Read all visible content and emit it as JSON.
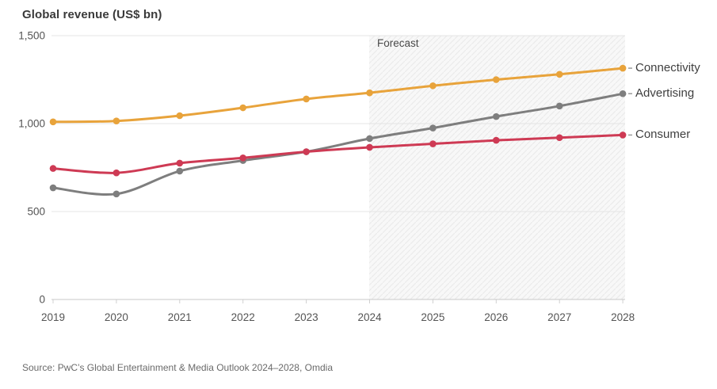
{
  "header": {
    "title": "Global revenue (US$ bn)"
  },
  "source": {
    "text": "Source: PwC’s Global Entertainment & Media Outlook 2024–2028, Omdia"
  },
  "chart_data": {
    "type": "line",
    "title": "Global revenue (US$ bn)",
    "x": [
      2019,
      2020,
      2021,
      2022,
      2023,
      2024,
      2025,
      2026,
      2027,
      2028
    ],
    "x_labels": [
      "2019",
      "2020",
      "2021",
      "2022",
      "2023",
      "2024",
      "2025",
      "2026",
      "2027",
      "2028"
    ],
    "series": [
      {
        "name": "Connectivity",
        "color": "#E8A33B",
        "values": [
          1010,
          1015,
          1045,
          1090,
          1140,
          1175,
          1215,
          1250,
          1280,
          1315
        ]
      },
      {
        "name": "Advertising",
        "color": "#7E7E7E",
        "values": [
          635,
          600,
          730,
          790,
          840,
          915,
          975,
          1040,
          1100,
          1170
        ]
      },
      {
        "name": "Consumer",
        "color": "#CE3A54",
        "values": [
          745,
          720,
          775,
          805,
          840,
          865,
          885,
          905,
          920,
          935
        ]
      }
    ],
    "ylim": [
      0,
      1500
    ],
    "yticks": [
      0,
      500,
      1000,
      1500
    ],
    "ytick_labels": [
      "0",
      "500",
      "1,000",
      "1,500"
    ],
    "forecast": {
      "label": "Forecast",
      "start_x": 2024,
      "end_x": 2028
    },
    "grid": "horizontal",
    "legend_position": "right-end-labels",
    "colors": {
      "grid": "#e4e4e4",
      "axis": "#c9c9c9",
      "band_bg": "#f8f8f8",
      "band_hatch": "#ebebeb",
      "label_connector": "#9b9b9b"
    }
  }
}
